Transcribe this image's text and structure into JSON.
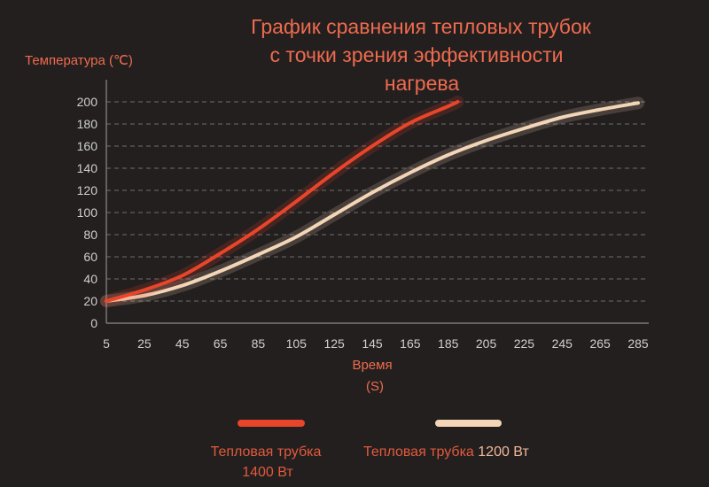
{
  "chart_data": {
    "type": "line",
    "title_lines": [
      "График сравнения тепловых трубок",
      "с точки зрения эффективности",
      "нагрева"
    ],
    "ylabel": "Температура (℃)",
    "xlabel_lines": [
      "Время",
      "(S)"
    ],
    "x_ticks": [
      5,
      25,
      45,
      65,
      85,
      105,
      125,
      145,
      165,
      185,
      205,
      225,
      245,
      265,
      285
    ],
    "y_ticks": [
      0,
      20,
      40,
      60,
      80,
      100,
      120,
      140,
      160,
      180,
      200
    ],
    "xlim": [
      5,
      285
    ],
    "ylim": [
      0,
      200
    ],
    "grid": "horizontal dashed",
    "legend_position": "bottom",
    "series": [
      {
        "name_parts": [
          "Тепловая трубка",
          "1400 Вт"
        ],
        "color": "#e8452a",
        "x": [
          5,
          25,
          45,
          65,
          85,
          105,
          125,
          145,
          165,
          185,
          190
        ],
        "y": [
          20,
          30,
          43,
          63,
          85,
          110,
          136,
          160,
          181,
          196,
          200
        ]
      },
      {
        "name_parts": [
          "Тепловая трубка ",
          "1200 Вт"
        ],
        "color": "#f3d5b8",
        "x": [
          5,
          25,
          45,
          65,
          85,
          105,
          125,
          145,
          165,
          185,
          205,
          225,
          245,
          265,
          285
        ],
        "y": [
          20,
          25,
          34,
          47,
          62,
          78,
          98,
          118,
          136,
          152,
          165,
          176,
          186,
          193,
          199
        ]
      }
    ]
  }
}
